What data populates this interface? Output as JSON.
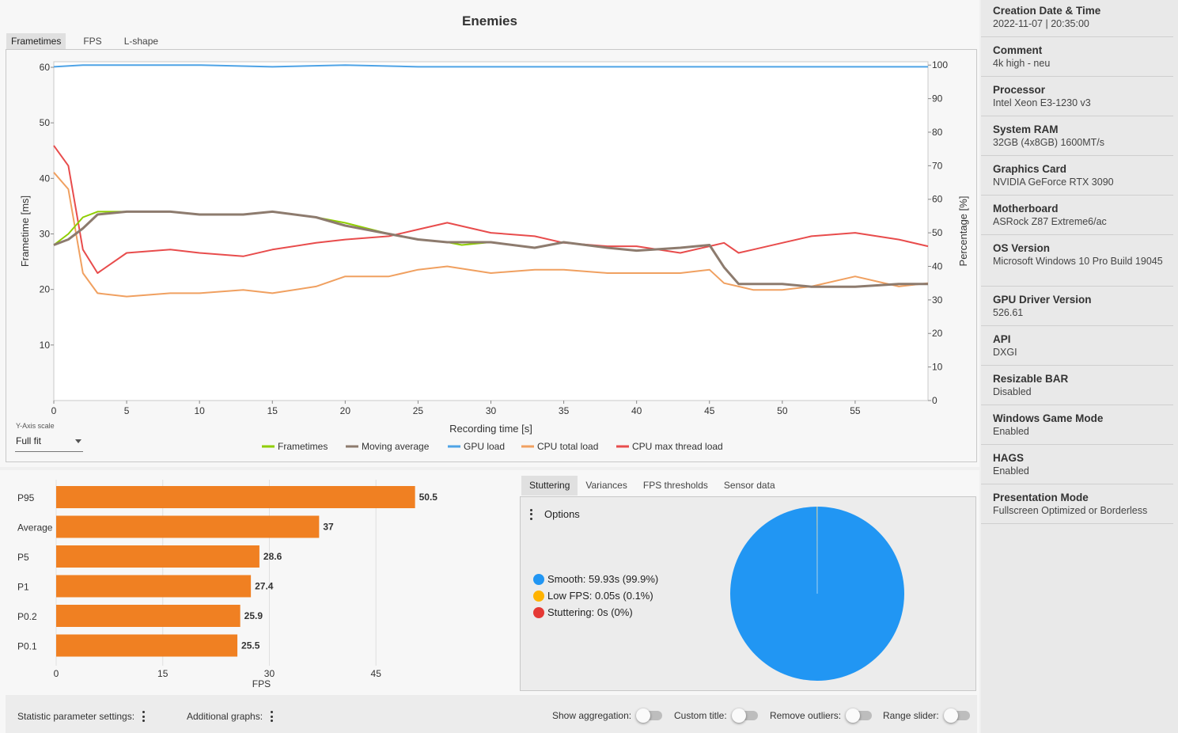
{
  "chart_title": "Enemies",
  "top_tabs": [
    "Frametimes",
    "FPS",
    "L-shape"
  ],
  "y_axis_scale": {
    "label": "Y-Axis scale",
    "value": "Full fit"
  },
  "bottom_tabs": [
    "Stuttering",
    "Variances",
    "FPS thresholds",
    "Sensor data"
  ],
  "stuttering": {
    "options_label": "Options",
    "legend": [
      {
        "label": "Smooth:",
        "value": "59.93s (99.9%)",
        "color": "#2196f3"
      },
      {
        "label": "Low FPS:",
        "value": "0.05s (0.1%)",
        "color": "#ffb300"
      },
      {
        "label": "Stuttering:",
        "value": "0s (0%)",
        "color": "#e53935"
      }
    ]
  },
  "footer": {
    "stat_settings": "Statistic parameter settings:",
    "additional_graphs": "Additional graphs:",
    "toggles": [
      "Show aggregation:",
      "Custom title:",
      "Remove outliers:",
      "Range slider:"
    ]
  },
  "sidebar": [
    {
      "key": "Creation Date & Time",
      "value": "2022-11-07  |  20:35:00"
    },
    {
      "key": "Comment",
      "value": "4k high - neu"
    },
    {
      "key": "Processor",
      "value": "Intel Xeon E3-1230 v3"
    },
    {
      "key": "System RAM",
      "value": "32GB (4x8GB) 1600MT/s"
    },
    {
      "key": "Graphics Card",
      "value": "NVIDIA GeForce RTX 3090"
    },
    {
      "key": "Motherboard",
      "value": "ASRock Z87 Extreme6/ac"
    },
    {
      "key": "OS Version",
      "value": "Microsoft Windows 10 Pro Build 19045"
    },
    {
      "key": "GPU Driver Version",
      "value": "526.61"
    },
    {
      "key": "API",
      "value": "DXGI"
    },
    {
      "key": "Resizable BAR",
      "value": "Disabled"
    },
    {
      "key": "Windows Game Mode",
      "value": "Enabled"
    },
    {
      "key": "HAGS",
      "value": "Enabled"
    },
    {
      "key": "Presentation Mode",
      "value": "Fullscreen Optimized or Borderless"
    }
  ],
  "chart_data": [
    {
      "type": "line",
      "xlabel": "Recording time [s]",
      "ylabel": "Frametime [ms]",
      "y2label": "Percentage [%]",
      "xlim": [
        0,
        60
      ],
      "ylim": [
        0,
        61
      ],
      "y2lim": [
        0,
        101
      ],
      "xticks": [
        0,
        5,
        10,
        15,
        20,
        25,
        30,
        35,
        40,
        45,
        50,
        55
      ],
      "yticks": [
        10,
        20,
        30,
        40,
        50,
        60
      ],
      "y2ticks": [
        0,
        10,
        20,
        30,
        40,
        50,
        60,
        70,
        80,
        90,
        100
      ],
      "legend_position": "bottom",
      "series": [
        {
          "name": "Frametimes",
          "axis": "left",
          "color": "#8fce00",
          "x": [
            0,
            1,
            2,
            3,
            5,
            8,
            10,
            13,
            15,
            18,
            20,
            23,
            25,
            27,
            28,
            30,
            33,
            35,
            38,
            40,
            43,
            45,
            46,
            47,
            49,
            50,
            52,
            55,
            58,
            60
          ],
          "y": [
            28,
            30,
            33,
            34,
            34,
            34,
            33.5,
            33.5,
            34,
            33,
            32,
            30,
            29,
            28.5,
            28,
            28.5,
            27.5,
            28.5,
            27.5,
            27,
            27.5,
            28,
            24,
            21,
            21,
            21,
            20.5,
            20.5,
            21,
            21
          ]
        },
        {
          "name": "Moving average",
          "axis": "left",
          "color": "#8d7b6e",
          "x": [
            0,
            1,
            2,
            3,
            5,
            8,
            10,
            13,
            15,
            18,
            20,
            23,
            25,
            27,
            30,
            33,
            35,
            38,
            40,
            43,
            45,
            46,
            47,
            49,
            50,
            52,
            55,
            58,
            60
          ],
          "y": [
            28,
            29,
            31,
            33.5,
            34,
            34,
            33.5,
            33.5,
            34,
            33,
            31.5,
            30,
            29,
            28.5,
            28.5,
            27.5,
            28.5,
            27.5,
            27,
            27.5,
            28,
            24,
            21,
            21,
            21,
            20.5,
            20.5,
            21,
            21
          ]
        },
        {
          "name": "GPU load",
          "axis": "right",
          "color": "#4ea3e6",
          "x": [
            0,
            2,
            5,
            10,
            15,
            20,
            25,
            28,
            30,
            35,
            40,
            45,
            50,
            55,
            60
          ],
          "y": [
            99.5,
            100,
            100,
            100,
            99.5,
            100,
            99.5,
            99.5,
            99.5,
            99.5,
            99.5,
            99.5,
            99.5,
            99.5,
            99.5
          ]
        },
        {
          "name": "CPU total load",
          "axis": "right",
          "color": "#f0a060",
          "x": [
            0,
            1,
            2,
            3,
            5,
            8,
            10,
            13,
            15,
            18,
            20,
            23,
            25,
            27,
            30,
            33,
            35,
            38,
            40,
            43,
            45,
            46,
            47,
            48,
            50,
            52,
            55,
            58,
            60
          ],
          "y": [
            68,
            63,
            38,
            32,
            31,
            32,
            32,
            33,
            32,
            34,
            37,
            37,
            39,
            40,
            38,
            39,
            39,
            38,
            38,
            38,
            39,
            35,
            34,
            33,
            33,
            34,
            37,
            34,
            35
          ]
        },
        {
          "name": "CPU max thread load",
          "axis": "right",
          "color": "#e84c4c",
          "x": [
            0,
            1,
            2,
            3,
            5,
            8,
            10,
            13,
            15,
            18,
            20,
            23,
            25,
            27,
            30,
            33,
            35,
            38,
            40,
            43,
            45,
            46,
            47,
            48,
            50,
            52,
            55,
            58,
            60
          ],
          "y": [
            76,
            70,
            45,
            38,
            44,
            45,
            44,
            43,
            45,
            47,
            48,
            49,
            51,
            53,
            50,
            49,
            47,
            46,
            46,
            44,
            46,
            47,
            44,
            45,
            47,
            49,
            50,
            48,
            46
          ]
        }
      ]
    },
    {
      "type": "bar",
      "orientation": "horizontal",
      "categories": [
        "P95",
        "Average",
        "P5",
        "P1",
        "P0.2",
        "P0.1"
      ],
      "values": [
        50.5,
        37,
        28.6,
        27.4,
        25.9,
        25.5
      ],
      "value_labels": [
        "50.5",
        "37",
        "28.6",
        "27.4",
        "25.9",
        "25.5"
      ],
      "color": "#f08022",
      "xlabel": "FPS",
      "xlim": [
        0,
        58
      ],
      "xticks": [
        0,
        15,
        30,
        45
      ]
    },
    {
      "type": "pie",
      "labels": [
        "Smooth",
        "Low FPS",
        "Stuttering"
      ],
      "values": [
        99.9,
        0.1,
        0
      ],
      "colors": [
        "#2196f3",
        "#ffb300",
        "#e53935"
      ]
    }
  ]
}
